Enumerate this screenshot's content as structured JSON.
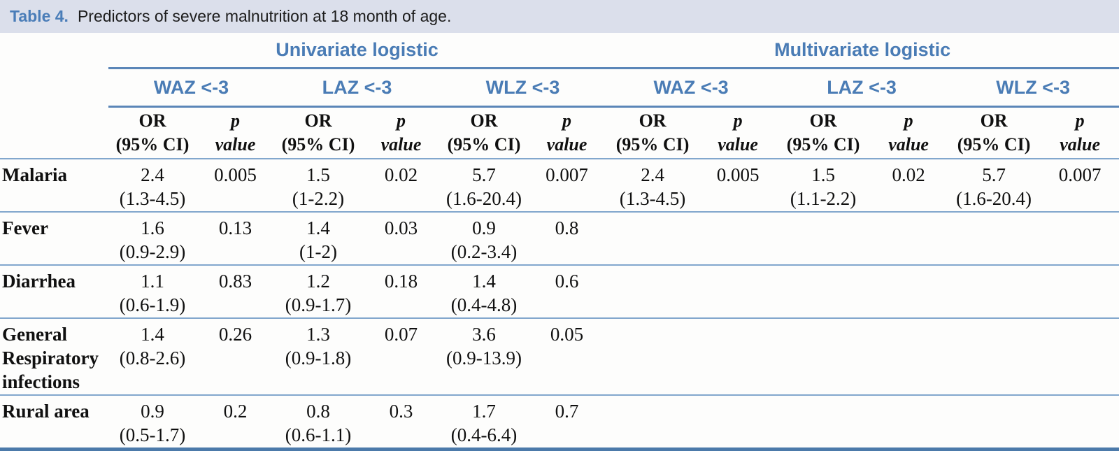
{
  "title": {
    "label": "Table 4.",
    "text": "Predictors of severe malnutrition at 18 month of age."
  },
  "table": {
    "groups": [
      {
        "label": "Univariate logistic",
        "subgroups": [
          "WAZ <-3",
          "LAZ <-3",
          "WLZ <-3"
        ]
      },
      {
        "label": "Multivariate logistic",
        "subgroups": [
          "WAZ <-3",
          "LAZ <-3",
          "WLZ <-3"
        ]
      }
    ],
    "col_headers": {
      "or_line1": "OR",
      "or_line2": "(95% CI)",
      "p_line1": "p",
      "p_line2": "value"
    },
    "rows": [
      {
        "label": "Malaria",
        "cells": [
          {
            "or": "2.4",
            "ci": "(1.3-4.5)",
            "p": "0.005"
          },
          {
            "or": "1.5",
            "ci": "(1-2.2)",
            "p": "0.02"
          },
          {
            "or": "5.7",
            "ci": "(1.6-20.4)",
            "p": "0.007"
          },
          {
            "or": "2.4",
            "ci": "(1.3-4.5)",
            "p": "0.005"
          },
          {
            "or": "1.5",
            "ci": "(1.1-2.2)",
            "p": "0.02"
          },
          {
            "or": "5.7",
            "ci": "(1.6-20.4)",
            "p": "0.007"
          }
        ]
      },
      {
        "label": "Fever",
        "cells": [
          {
            "or": "1.6",
            "ci": "(0.9-2.9)",
            "p": "0.13"
          },
          {
            "or": "1.4",
            "ci": "(1-2)",
            "p": "0.03"
          },
          {
            "or": "0.9",
            "ci": "(0.2-3.4)",
            "p": "0.8"
          },
          null,
          null,
          null
        ]
      },
      {
        "label": "Diarrhea",
        "cells": [
          {
            "or": "1.1",
            "ci": "(0.6-1.9)",
            "p": "0.83"
          },
          {
            "or": "1.2",
            "ci": "(0.9-1.7)",
            "p": "0.18"
          },
          {
            "or": "1.4",
            "ci": "(0.4-4.8)",
            "p": "0.6"
          },
          null,
          null,
          null
        ]
      },
      {
        "label": "General Respiratory infections",
        "cells": [
          {
            "or": "1.4",
            "ci": "(0.8-2.6)",
            "p": "0.26"
          },
          {
            "or": "1.3",
            "ci": "(0.9-1.8)",
            "p": "0.07"
          },
          {
            "or": "3.6",
            "ci": "(0.9-13.9)",
            "p": "0.05"
          },
          null,
          null,
          null
        ]
      },
      {
        "label": "Rural area",
        "cells": [
          {
            "or": "0.9",
            "ci": "(0.5-1.7)",
            "p": "0.2"
          },
          {
            "or": "0.8",
            "ci": "(0.6-1.1)",
            "p": "0.3"
          },
          {
            "or": "1.7",
            "ci": "(0.4-6.4)",
            "p": "0.7"
          },
          null,
          null,
          null
        ]
      }
    ]
  },
  "colors": {
    "accent_blue_text": "#4a7cb5",
    "caption_bg": "#dbdfeb",
    "heavy_rule": "#5b86b8",
    "thin_rule": "#82a7cd",
    "bottom_rule": "#4c7aaa"
  }
}
